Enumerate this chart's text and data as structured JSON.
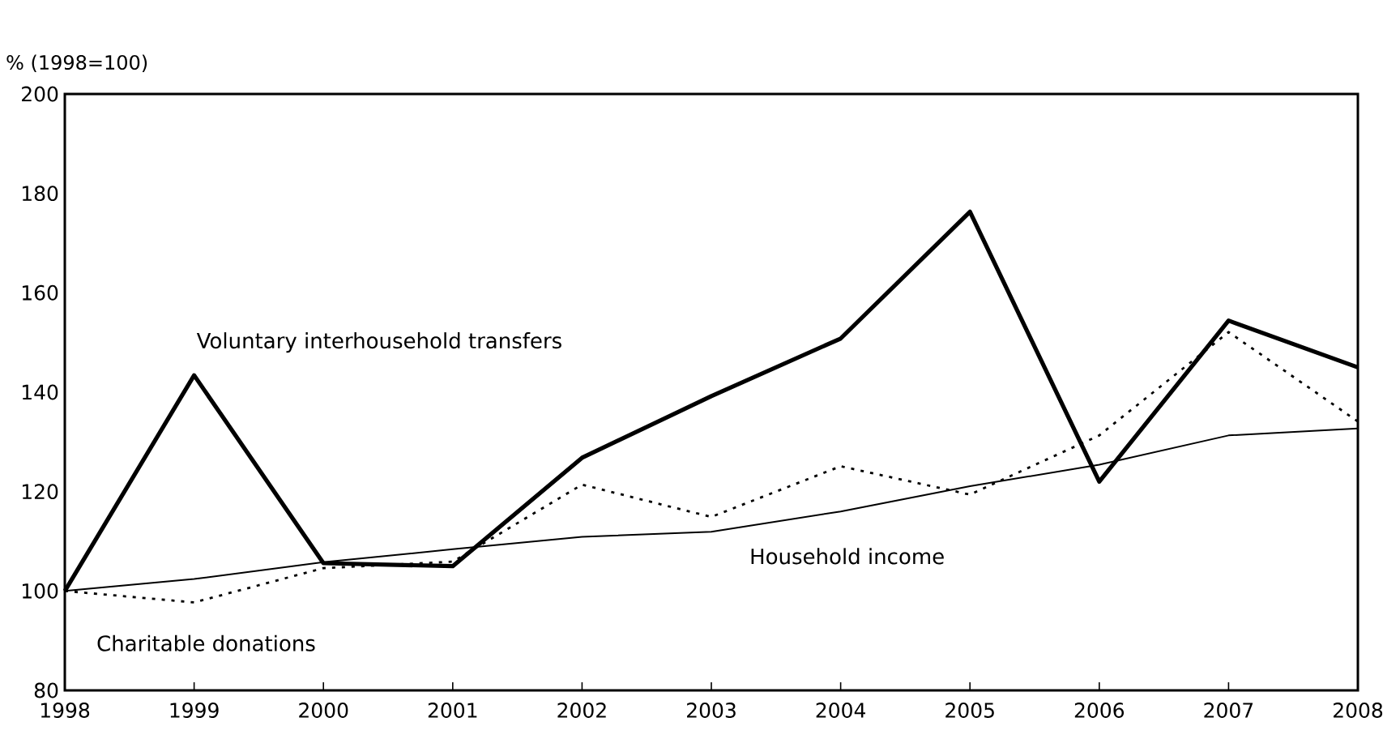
{
  "chart_data": {
    "type": "line",
    "ylabel": "% (1998=100)",
    "x": [
      1998,
      1999,
      2000,
      2001,
      2002,
      2003,
      2004,
      2005,
      2006,
      2007,
      2008
    ],
    "xlim": [
      1998,
      2008
    ],
    "xticks": [
      1998,
      1999,
      2000,
      2001,
      2002,
      2003,
      2004,
      2005,
      2006,
      2007,
      2008
    ],
    "ylim": [
      80,
      200
    ],
    "yticks": [
      80,
      100,
      120,
      140,
      160,
      180,
      200
    ],
    "grid": false,
    "marker": "none",
    "series": [
      {
        "name": "Voluntary interhousehold transfers",
        "color": "#000000",
        "line_style": "solid",
        "values": [
          100,
          143.4,
          105.6,
          105,
          126.8,
          139.2,
          150.8,
          176.3,
          122,
          154.4,
          145
        ]
      },
      {
        "name": "Household income",
        "color": "#000000",
        "line_style": "solid",
        "values": [
          100,
          102.4,
          105.8,
          108.4,
          110.9,
          111.9,
          116,
          121.1,
          125.4,
          131.3,
          132.7
        ]
      },
      {
        "name": "Charitable donations",
        "color": "#000000",
        "line_style": "dotted",
        "values": [
          100,
          97.7,
          104.6,
          105.9,
          121.4,
          114.9,
          125.1,
          119.4,
          131.3,
          152.1,
          134.1
        ]
      }
    ]
  }
}
